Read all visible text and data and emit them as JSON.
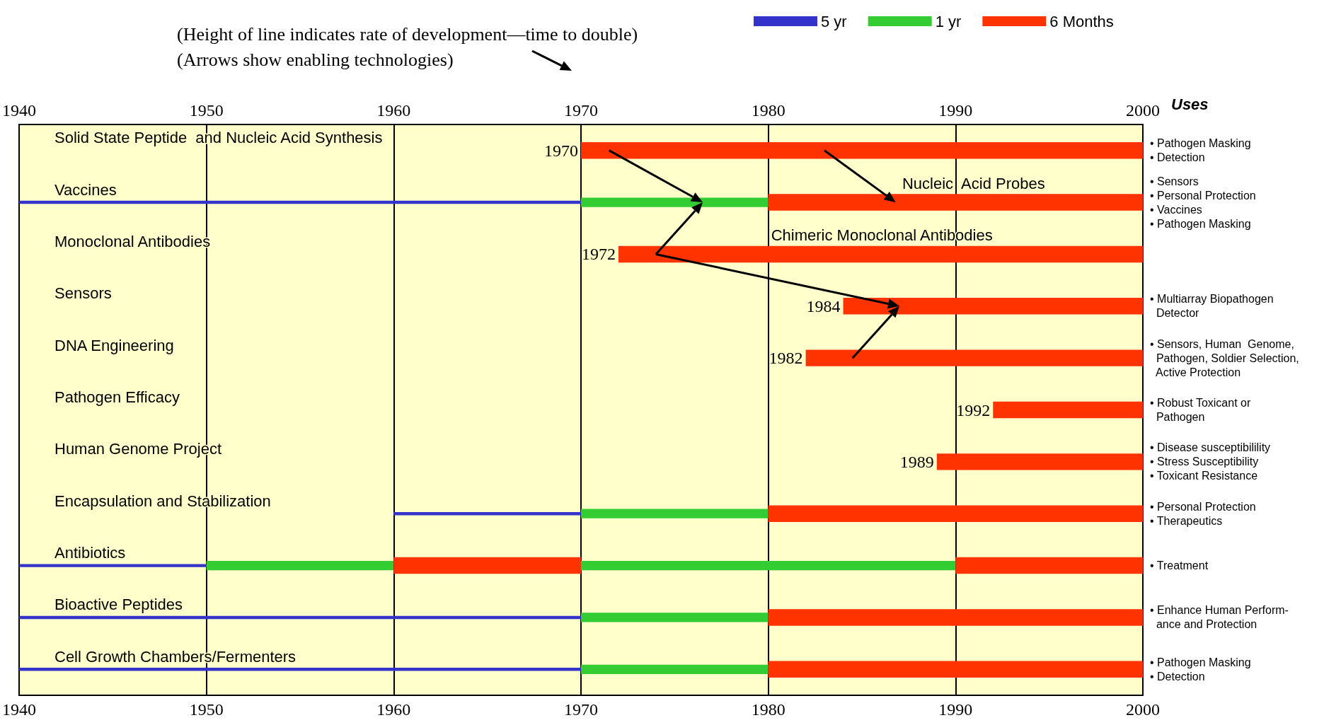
{
  "chart_data": {
    "type": "bar",
    "orientation": "horizontal",
    "title": "(Height of line indicates rate of development—time to double)",
    "subtitle": "(Arrows show enabling technologies)",
    "y2label": "Uses",
    "categories": [
      "Solid State Peptide  and Nucleic Acid Synthesis",
      "Vaccines",
      "Monoclonal Antibodies",
      "Sensors",
      "DNA Engineering",
      "Pathogen Efficacy",
      "Human Genome Project",
      "Encapsulation and Stabilization",
      "Antibiotics",
      "Bioactive Peptides",
      "Cell Growth Chambers/Fermenters"
    ],
    "y2_categories": [
      "• Pathogen Masking\n• Detection",
      "• Sensors\n• Personal Protection\n• Vaccines\n• Pathogen Masking",
      null,
      "• Multiarray Biopathogen\n  Detector",
      "• Sensors, Human  Genome,\n  Pathogen, Soldier Selection,\n  Active Protection",
      "• Robust Toxicant or\n  Pathogen",
      "• Disease susceptibilility\n• Stress Susceptibility\n• Toxicant Resistance",
      "• Personal Protection\n• Therapeutics",
      "• Treatment",
      "• Enhance Human Perform-\n  ance and Protection",
      "• Pathogen Masking\n• Detection"
    ],
    "series": [
      {
        "name": "5 yr",
        "color": "#3333cc",
        "base": [
          null,
          1940,
          null,
          null,
          null,
          null,
          null,
          1960,
          1940,
          1940,
          1940
        ],
        "values": [
          null,
          30,
          null,
          null,
          null,
          null,
          null,
          10,
          10,
          30,
          30
        ]
      },
      {
        "name": "1 yr",
        "color": "#33cc33",
        "base": [
          null,
          1970,
          null,
          null,
          null,
          null,
          null,
          1970,
          1950,
          1970,
          1970
        ],
        "values": [
          null,
          10,
          null,
          null,
          null,
          null,
          null,
          10,
          10,
          10,
          10
        ]
      },
      {
        "name": "6 Months",
        "color": "#ff3300",
        "base": [
          1970,
          1980,
          1972,
          1984,
          1982,
          1992,
          1989,
          1980,
          1960,
          1980,
          1980
        ],
        "values": [
          30,
          20,
          28,
          16,
          18,
          8,
          11,
          20,
          10,
          20,
          20
        ]
      },
      {
        "color": "#33cc33",
        "base": [
          null,
          null,
          null,
          null,
          null,
          null,
          null,
          null,
          1970,
          null,
          null
        ],
        "values": [
          null,
          null,
          null,
          null,
          null,
          null,
          null,
          null,
          20,
          null,
          null
        ]
      },
      {
        "color": "#ff3300",
        "base": [
          null,
          null,
          null,
          null,
          null,
          null,
          null,
          null,
          1990,
          null,
          null
        ],
        "values": [
          null,
          null,
          null,
          null,
          null,
          null,
          null,
          null,
          10,
          null,
          null
        ]
      }
    ],
    "annotations": [
      {
        "text": "Nucleic  Acid Probes",
        "x": 1987,
        "y": "Vaccines"
      },
      {
        "text": "Chimeric Monoclonal Antibodies",
        "x": 1980,
        "y": "Monoclonal Antibodies"
      },
      {
        "text": "1970",
        "x": 1970,
        "y": "Solid State Peptide  and Nucleic Acid Synthesis"
      },
      {
        "text": "1972",
        "x": 1972,
        "y": "Monoclonal Antibodies"
      },
      {
        "text": "1984",
        "x": 1984,
        "y": "Sensors"
      },
      {
        "text": "1982",
        "x": 1982,
        "y": "DNA Engineering"
      },
      {
        "text": "1992",
        "x": 1992,
        "y": "Pathogen Efficacy"
      },
      {
        "text": "1989",
        "x": 1989,
        "y": "Human Genome Project"
      }
    ],
    "xlim": [
      1940,
      2000
    ],
    "xticks": [
      1940,
      1950,
      1960,
      1970,
      1980,
      1990,
      2000
    ],
    "x2lim": [
      1940,
      2000
    ],
    "x2ticks": [
      1940,
      1950,
      1960,
      1970,
      1980,
      1990,
      2000
    ],
    "grid": "x",
    "legend": "top"
  }
}
